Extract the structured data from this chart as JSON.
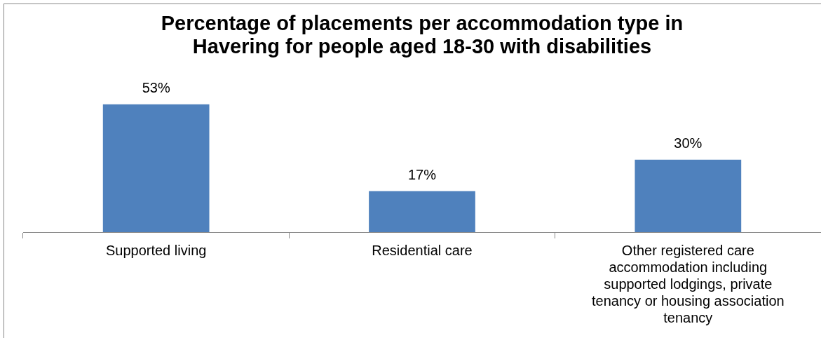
{
  "chart_data": {
    "type": "bar",
    "title": "Percentage of placements per accommodation type in Havering for people aged 18-30 with disabilities",
    "categories": [
      "Supported living",
      "Residential care",
      "Other registered care accommodation including supported lodgings, private tenancy or housing association tenancy"
    ],
    "values": [
      53,
      17,
      30
    ],
    "value_labels": [
      "53%",
      "17%",
      "30%"
    ],
    "color": "#4f81bd",
    "grid": false,
    "legend": false
  }
}
